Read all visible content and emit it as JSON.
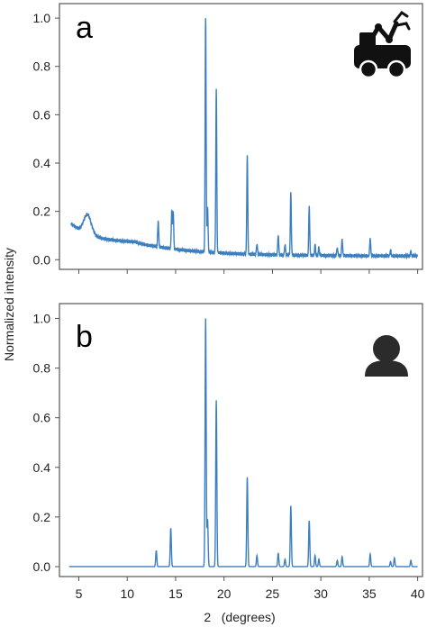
{
  "figure": {
    "ylabel": "Normalized intensity",
    "xlabel": "2   (degrees)"
  },
  "icons": {
    "panel_a": "robot-icon",
    "panel_b": "person-icon"
  },
  "colors": {
    "line": "#3b7fc0",
    "frame": "#555555",
    "icon": "#111111",
    "person": "#2b2b2b"
  },
  "chart_data": [
    {
      "type": "line",
      "panel_label": "a",
      "xlim": [
        3,
        40.5
      ],
      "ylim": [
        -0.04,
        1.06
      ],
      "yticks": [
        "0.0",
        "0.2",
        "0.4",
        "0.6",
        "0.8",
        "1.0"
      ],
      "xticks": [],
      "grid": false,
      "baseline": {
        "start": 0.15,
        "hump_center": 5.9,
        "hump_height": 0.08,
        "floor": 0.07,
        "end": 0.015
      },
      "peaks": [
        {
          "x": 13.2,
          "y": 0.11
        },
        {
          "x": 14.6,
          "y": 0.16
        },
        {
          "x": 14.75,
          "y": 0.16
        },
        {
          "x": 18.1,
          "y": 1.0
        },
        {
          "x": 18.3,
          "y": 0.19
        },
        {
          "x": 19.2,
          "y": 0.675
        },
        {
          "x": 22.4,
          "y": 0.41
        },
        {
          "x": 23.4,
          "y": 0.045
        },
        {
          "x": 25.6,
          "y": 0.085
        },
        {
          "x": 26.3,
          "y": 0.045
        },
        {
          "x": 26.9,
          "y": 0.26
        },
        {
          "x": 28.8,
          "y": 0.205
        },
        {
          "x": 29.4,
          "y": 0.045
        },
        {
          "x": 29.8,
          "y": 0.035
        },
        {
          "x": 31.7,
          "y": 0.035
        },
        {
          "x": 32.2,
          "y": 0.07
        },
        {
          "x": 35.1,
          "y": 0.075
        },
        {
          "x": 37.2,
          "y": 0.025
        },
        {
          "x": 39.3,
          "y": 0.02
        }
      ]
    },
    {
      "type": "line",
      "panel_label": "b",
      "xlim": [
        3,
        40.5
      ],
      "ylim": [
        -0.04,
        1.06
      ],
      "yticks": [
        "0.0",
        "0.2",
        "0.4",
        "0.6",
        "0.8",
        "1.0"
      ],
      "xticks": [
        "5",
        "10",
        "15",
        "20",
        "25",
        "30",
        "35",
        "40"
      ],
      "grid": false,
      "x_range": [
        4,
        40
      ],
      "peaks": [
        {
          "x": 13.0,
          "y": 0.065
        },
        {
          "x": 14.5,
          "y": 0.155
        },
        {
          "x": 18.1,
          "y": 1.0
        },
        {
          "x": 18.3,
          "y": 0.19
        },
        {
          "x": 19.2,
          "y": 0.67
        },
        {
          "x": 22.4,
          "y": 0.36
        },
        {
          "x": 23.4,
          "y": 0.045
        },
        {
          "x": 25.6,
          "y": 0.055
        },
        {
          "x": 26.3,
          "y": 0.03
        },
        {
          "x": 26.9,
          "y": 0.245
        },
        {
          "x": 28.8,
          "y": 0.185
        },
        {
          "x": 29.4,
          "y": 0.045
        },
        {
          "x": 29.8,
          "y": 0.03
        },
        {
          "x": 31.7,
          "y": 0.025
        },
        {
          "x": 32.2,
          "y": 0.04
        },
        {
          "x": 35.1,
          "y": 0.05
        },
        {
          "x": 37.2,
          "y": 0.02
        },
        {
          "x": 37.6,
          "y": 0.035
        },
        {
          "x": 39.3,
          "y": 0.025
        }
      ]
    }
  ]
}
